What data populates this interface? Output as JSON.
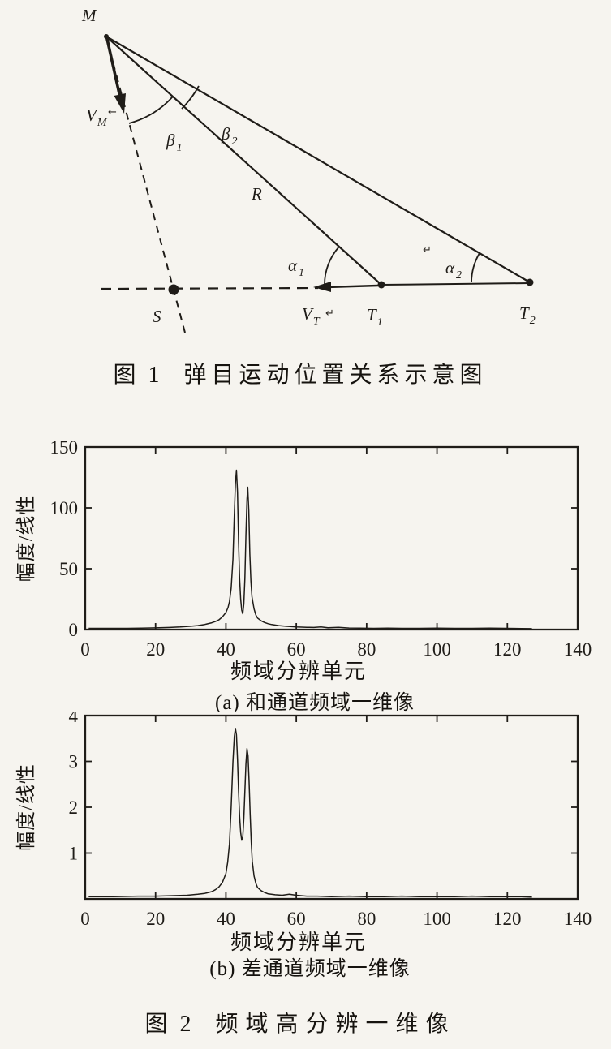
{
  "page": {
    "background": "#f6f4ef",
    "ink": "#1f1c18",
    "description": "扫描论文插图：弹目运动位置关系示意图与频域高分辨一维像"
  },
  "figure1": {
    "caption_prefix": "图 1",
    "caption_text": "弹目运动位置关系示意图",
    "labels": {
      "M": "M",
      "S": "S",
      "R": "R",
      "VM_base": "V",
      "VM_sub": "M",
      "VT_base": "V",
      "VT_sub": "T",
      "T1_base": "T",
      "T1_sub": "1",
      "T2_base": "T",
      "T2_sub": "2",
      "beta1_base": "β",
      "beta1_sub": "1",
      "beta2_base": "β",
      "beta2_sub": "2",
      "alpha1_base": "α",
      "alpha1_sub": "1",
      "alpha2_base": "α",
      "alpha2_sub": "2",
      "vm_arrow_mark": "←",
      "vt_return_mark": "↵",
      "alpha2_return_mark": "↵"
    }
  },
  "figure2": {
    "caption_prefix": "图 2",
    "caption_text": "频域高分辨一维像"
  },
  "chart_data": [
    {
      "type": "line",
      "id": "sum-channel",
      "subcaption": "(a) 和通道频域一维像",
      "xlabel": "频域分辨单元",
      "ylabel": "幅度/线性",
      "xlim": [
        0,
        140
      ],
      "ylim": [
        0,
        150
      ],
      "xticks": [
        0,
        20,
        40,
        60,
        80,
        100,
        120,
        140
      ],
      "yticks": [
        0,
        50,
        100,
        150
      ],
      "grid": false,
      "box": true,
      "legend": false,
      "peaks": [
        {
          "x": 43,
          "y": 131
        },
        {
          "x": 46,
          "y": 117
        }
      ],
      "points": [
        [
          1,
          1
        ],
        [
          6,
          1
        ],
        [
          12,
          1
        ],
        [
          16,
          1.2
        ],
        [
          20,
          1.4
        ],
        [
          24,
          1.7
        ],
        [
          27,
          2.1
        ],
        [
          30,
          2.7
        ],
        [
          32,
          3.3
        ],
        [
          34,
          4.2
        ],
        [
          36,
          5.6
        ],
        [
          37,
          6.6
        ],
        [
          38,
          8
        ],
        [
          39,
          10.5
        ],
        [
          40,
          14
        ],
        [
          40.6,
          18
        ],
        [
          41,
          23
        ],
        [
          41.5,
          34
        ],
        [
          42,
          58
        ],
        [
          42.4,
          95
        ],
        [
          42.7,
          120
        ],
        [
          43,
          131
        ],
        [
          43.3,
          113
        ],
        [
          43.6,
          72
        ],
        [
          43.9,
          42
        ],
        [
          44.2,
          25
        ],
        [
          44.5,
          16
        ],
        [
          44.8,
          13
        ],
        [
          45.1,
          21
        ],
        [
          45.4,
          42
        ],
        [
          45.7,
          78
        ],
        [
          46,
          107
        ],
        [
          46.2,
          117
        ],
        [
          46.5,
          98
        ],
        [
          46.8,
          62
        ],
        [
          47.1,
          40
        ],
        [
          47.4,
          27
        ],
        [
          48,
          17
        ],
        [
          48.5,
          12
        ],
        [
          49,
          9.5
        ],
        [
          50,
          7.2
        ],
        [
          51,
          5.8
        ],
        [
          52,
          4.8
        ],
        [
          53,
          4.1
        ],
        [
          55,
          3.3
        ],
        [
          57,
          2.7
        ],
        [
          60,
          2.2
        ],
        [
          63,
          1.9
        ],
        [
          65,
          1.7
        ],
        [
          67,
          2.1
        ],
        [
          69,
          1.5
        ],
        [
          72,
          1.8
        ],
        [
          75,
          1.3
        ],
        [
          78,
          1.1
        ],
        [
          82,
          1
        ],
        [
          86,
          1.2
        ],
        [
          90,
          1
        ],
        [
          95,
          1
        ],
        [
          100,
          1.1
        ],
        [
          105,
          1
        ],
        [
          110,
          1
        ],
        [
          115,
          1.1
        ],
        [
          120,
          1
        ],
        [
          124,
          0.9
        ],
        [
          127,
          0.7
        ]
      ]
    },
    {
      "type": "line",
      "id": "difference-channel",
      "subcaption": "(b) 差通道频域一维像",
      "xlabel": "频域分辨单元",
      "ylabel": "幅度/线性",
      "xlim": [
        0,
        140
      ],
      "ylim": [
        0,
        4
      ],
      "xticks": [
        0,
        20,
        40,
        60,
        80,
        100,
        120,
        140
      ],
      "yticks": [
        1,
        2,
        3,
        4
      ],
      "grid": false,
      "box": true,
      "legend": false,
      "peaks": [
        {
          "x": 43,
          "y": 3.72
        },
        {
          "x": 46,
          "y": 3.28
        }
      ],
      "points": [
        [
          1,
          0.05
        ],
        [
          8,
          0.05
        ],
        [
          15,
          0.06
        ],
        [
          20,
          0.06
        ],
        [
          25,
          0.07
        ],
        [
          29,
          0.08
        ],
        [
          32,
          0.1
        ],
        [
          34,
          0.12
        ],
        [
          36,
          0.16
        ],
        [
          37,
          0.2
        ],
        [
          38,
          0.26
        ],
        [
          39,
          0.36
        ],
        [
          40,
          0.55
        ],
        [
          40.5,
          0.8
        ],
        [
          41,
          1.2
        ],
        [
          41.5,
          2
        ],
        [
          42,
          3
        ],
        [
          42.4,
          3.55
        ],
        [
          42.7,
          3.72
        ],
        [
          43,
          3.58
        ],
        [
          43.3,
          3.05
        ],
        [
          43.6,
          2.35
        ],
        [
          43.9,
          1.8
        ],
        [
          44.2,
          1.45
        ],
        [
          44.5,
          1.28
        ],
        [
          44.8,
          1.35
        ],
        [
          45.1,
          1.75
        ],
        [
          45.4,
          2.35
        ],
        [
          45.7,
          2.95
        ],
        [
          46,
          3.28
        ],
        [
          46.3,
          3.12
        ],
        [
          46.6,
          2.55
        ],
        [
          46.9,
          1.85
        ],
        [
          47.2,
          1.25
        ],
        [
          47.5,
          0.82
        ],
        [
          48,
          0.5
        ],
        [
          48.5,
          0.34
        ],
        [
          49,
          0.25
        ],
        [
          50,
          0.18
        ],
        [
          51,
          0.14
        ],
        [
          52,
          0.11
        ],
        [
          54,
          0.09
        ],
        [
          56,
          0.08
        ],
        [
          58,
          0.1
        ],
        [
          60,
          0.08
        ],
        [
          63,
          0.06
        ],
        [
          66,
          0.06
        ],
        [
          70,
          0.05
        ],
        [
          75,
          0.06
        ],
        [
          80,
          0.05
        ],
        [
          85,
          0.05
        ],
        [
          90,
          0.06
        ],
        [
          95,
          0.05
        ],
        [
          100,
          0.05
        ],
        [
          105,
          0.05
        ],
        [
          110,
          0.06
        ],
        [
          115,
          0.05
        ],
        [
          120,
          0.05
        ],
        [
          124,
          0.05
        ],
        [
          127,
          0.04
        ]
      ]
    }
  ]
}
